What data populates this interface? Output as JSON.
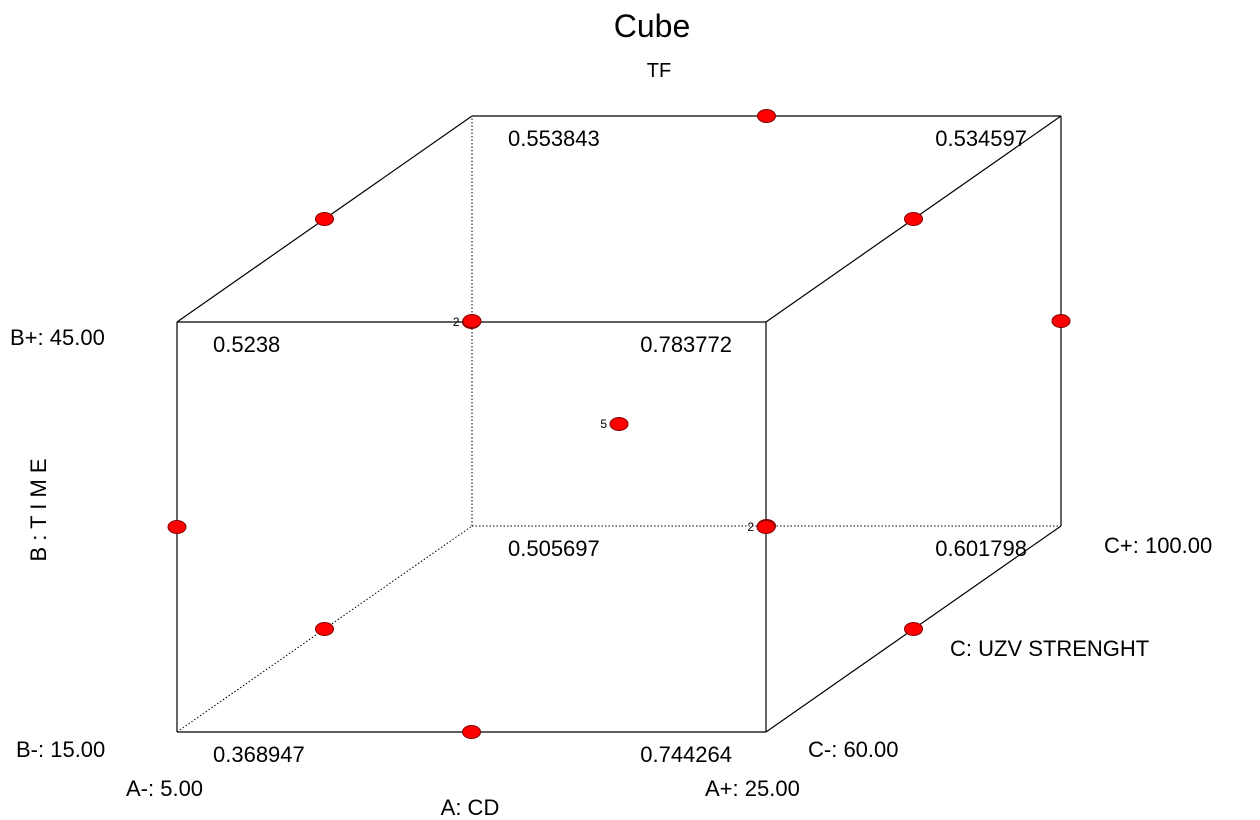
{
  "chart_data": {
    "type": "cube",
    "title": "Cube",
    "response": "TF",
    "factors": {
      "A": {
        "name": "A: CD",
        "low": "A-: 5.00",
        "high": "A+: 25.00"
      },
      "B": {
        "name": "B : T I M E",
        "low": "B-: 15.00",
        "high": "B+: 45.00"
      },
      "C": {
        "name": "C: UZV STRENGHT",
        "low": "C-: 60.00",
        "high": "C+: 100.00"
      }
    },
    "corners": [
      {
        "a": -1,
        "b": -1,
        "c": -1,
        "value": "0.368947"
      },
      {
        "a": 1,
        "b": -1,
        "c": -1,
        "value": "0.744264"
      },
      {
        "a": -1,
        "b": 1,
        "c": -1,
        "value": "0.5238"
      },
      {
        "a": 1,
        "b": 1,
        "c": -1,
        "value": "0.783772"
      },
      {
        "a": -1,
        "b": -1,
        "c": 1,
        "value": "0.505697"
      },
      {
        "a": 1,
        "b": -1,
        "c": 1,
        "value": "0.601798"
      },
      {
        "a": -1,
        "b": 1,
        "c": 1,
        "value": "0.553843"
      },
      {
        "a": 1,
        "b": 1,
        "c": 1,
        "value": "0.534597"
      }
    ],
    "design_points": [
      {
        "a": 0,
        "b": -1,
        "c": -1,
        "count": null
      },
      {
        "a": 0,
        "b": -1,
        "c": 1,
        "count": null
      },
      {
        "a": 0,
        "b": 1,
        "c": -1,
        "count": "2"
      },
      {
        "a": 0,
        "b": 1,
        "c": 1,
        "count": null
      },
      {
        "a": -1,
        "b": 0,
        "c": -1,
        "count": null
      },
      {
        "a": -1,
        "b": 0,
        "c": 1,
        "count": null
      },
      {
        "a": 1,
        "b": 0,
        "c": -1,
        "count": "2"
      },
      {
        "a": 1,
        "b": 0,
        "c": 1,
        "count": null
      },
      {
        "a": -1,
        "b": -1,
        "c": 0,
        "count": null
      },
      {
        "a": -1,
        "b": 1,
        "c": 0,
        "count": null
      },
      {
        "a": 1,
        "b": -1,
        "c": 0,
        "count": null
      },
      {
        "a": 1,
        "b": 1,
        "c": 0,
        "count": null
      },
      {
        "a": 0,
        "b": 0,
        "c": 0,
        "count": "5"
      }
    ],
    "point_color": "#ff0000",
    "point_outline": "#800000"
  }
}
